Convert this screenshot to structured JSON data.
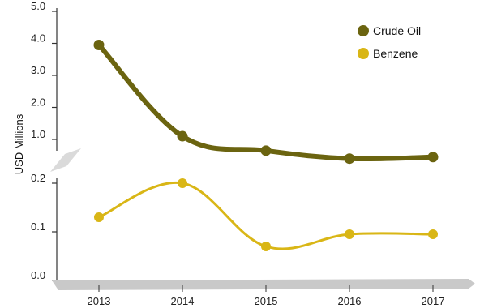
{
  "chart_data": {
    "type": "line",
    "title": "",
    "xlabel": "",
    "ylabel": "USD Millions",
    "categories": [
      "2013",
      "2014",
      "2015",
      "2016",
      "2017"
    ],
    "y_axis_break": true,
    "upper_panel": {
      "ylim": [
        1.0,
        5.0
      ],
      "ticks": [
        "1.0",
        "2.0",
        "3.0",
        "4.0",
        "5.0"
      ]
    },
    "lower_panel": {
      "ylim": [
        0.0,
        0.2
      ],
      "ticks": [
        "0.0",
        "0.1",
        "0.2"
      ]
    },
    "legend_position": "top-right",
    "grid": false,
    "series": [
      {
        "name": "Crude Oil",
        "color": "#6b6410",
        "panel": "upper",
        "values": [
          3.95,
          1.1,
          0.65,
          0.4,
          0.45
        ]
      },
      {
        "name": "Benzene",
        "color": "#d9b616",
        "panel": "lower",
        "values": [
          0.13,
          0.2,
          0.07,
          0.095,
          0.095
        ]
      }
    ]
  }
}
